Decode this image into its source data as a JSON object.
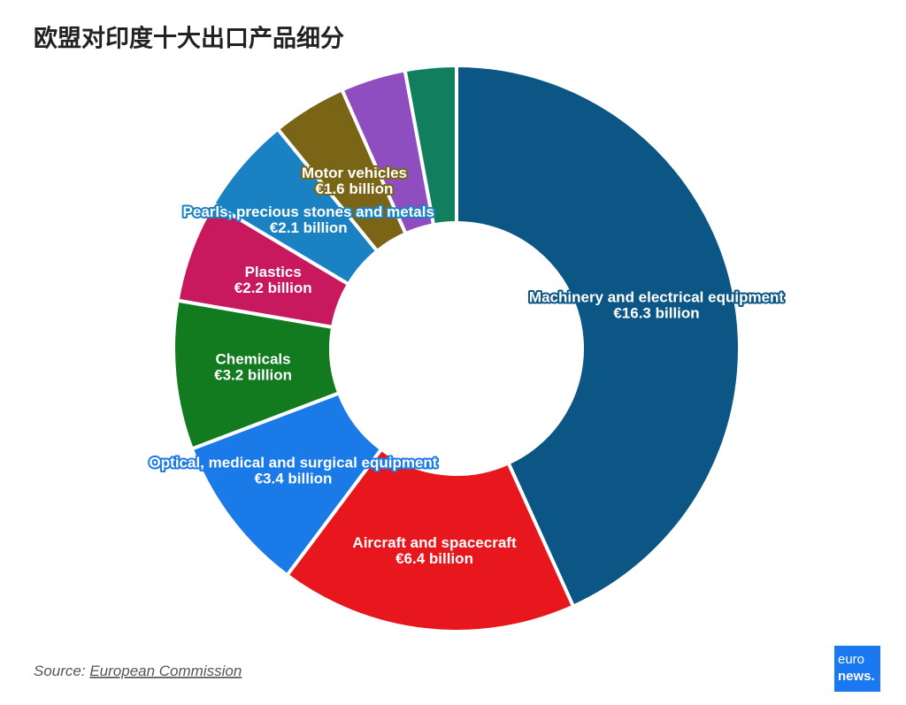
{
  "chart_data": {
    "type": "pie",
    "title": "欧盟对印度十大出口产品细分",
    "categories": [
      "Machinery and electrical equipment",
      "Aircraft and spacecraft",
      "Optical, medical and surgical equipment",
      "Chemicals",
      "Plastics",
      "Pearls, precious stones and metals",
      "Motor vehicles",
      null,
      null
    ],
    "values": [
      16.3,
      6.4,
      3.4,
      3.2,
      2.2,
      2.1,
      1.6,
      1.4,
      1.1
    ],
    "value_labels": [
      "€16.3 billion",
      "€6.4 billion",
      "€3.4 billion",
      "€3.2 billion",
      "€2.2 billion",
      "€2.1 billion",
      "€1.6 billion",
      null,
      null
    ],
    "colors": [
      "#0b5685",
      "#e8161d",
      "#1a7ae8",
      "#127a1f",
      "#c8185e",
      "#1a82c3",
      "#7a6416",
      "#8e4ec0",
      "#117f5e"
    ],
    "source_prefix": "Source:",
    "source": "European Commission",
    "logo": [
      "euro",
      "news."
    ]
  }
}
